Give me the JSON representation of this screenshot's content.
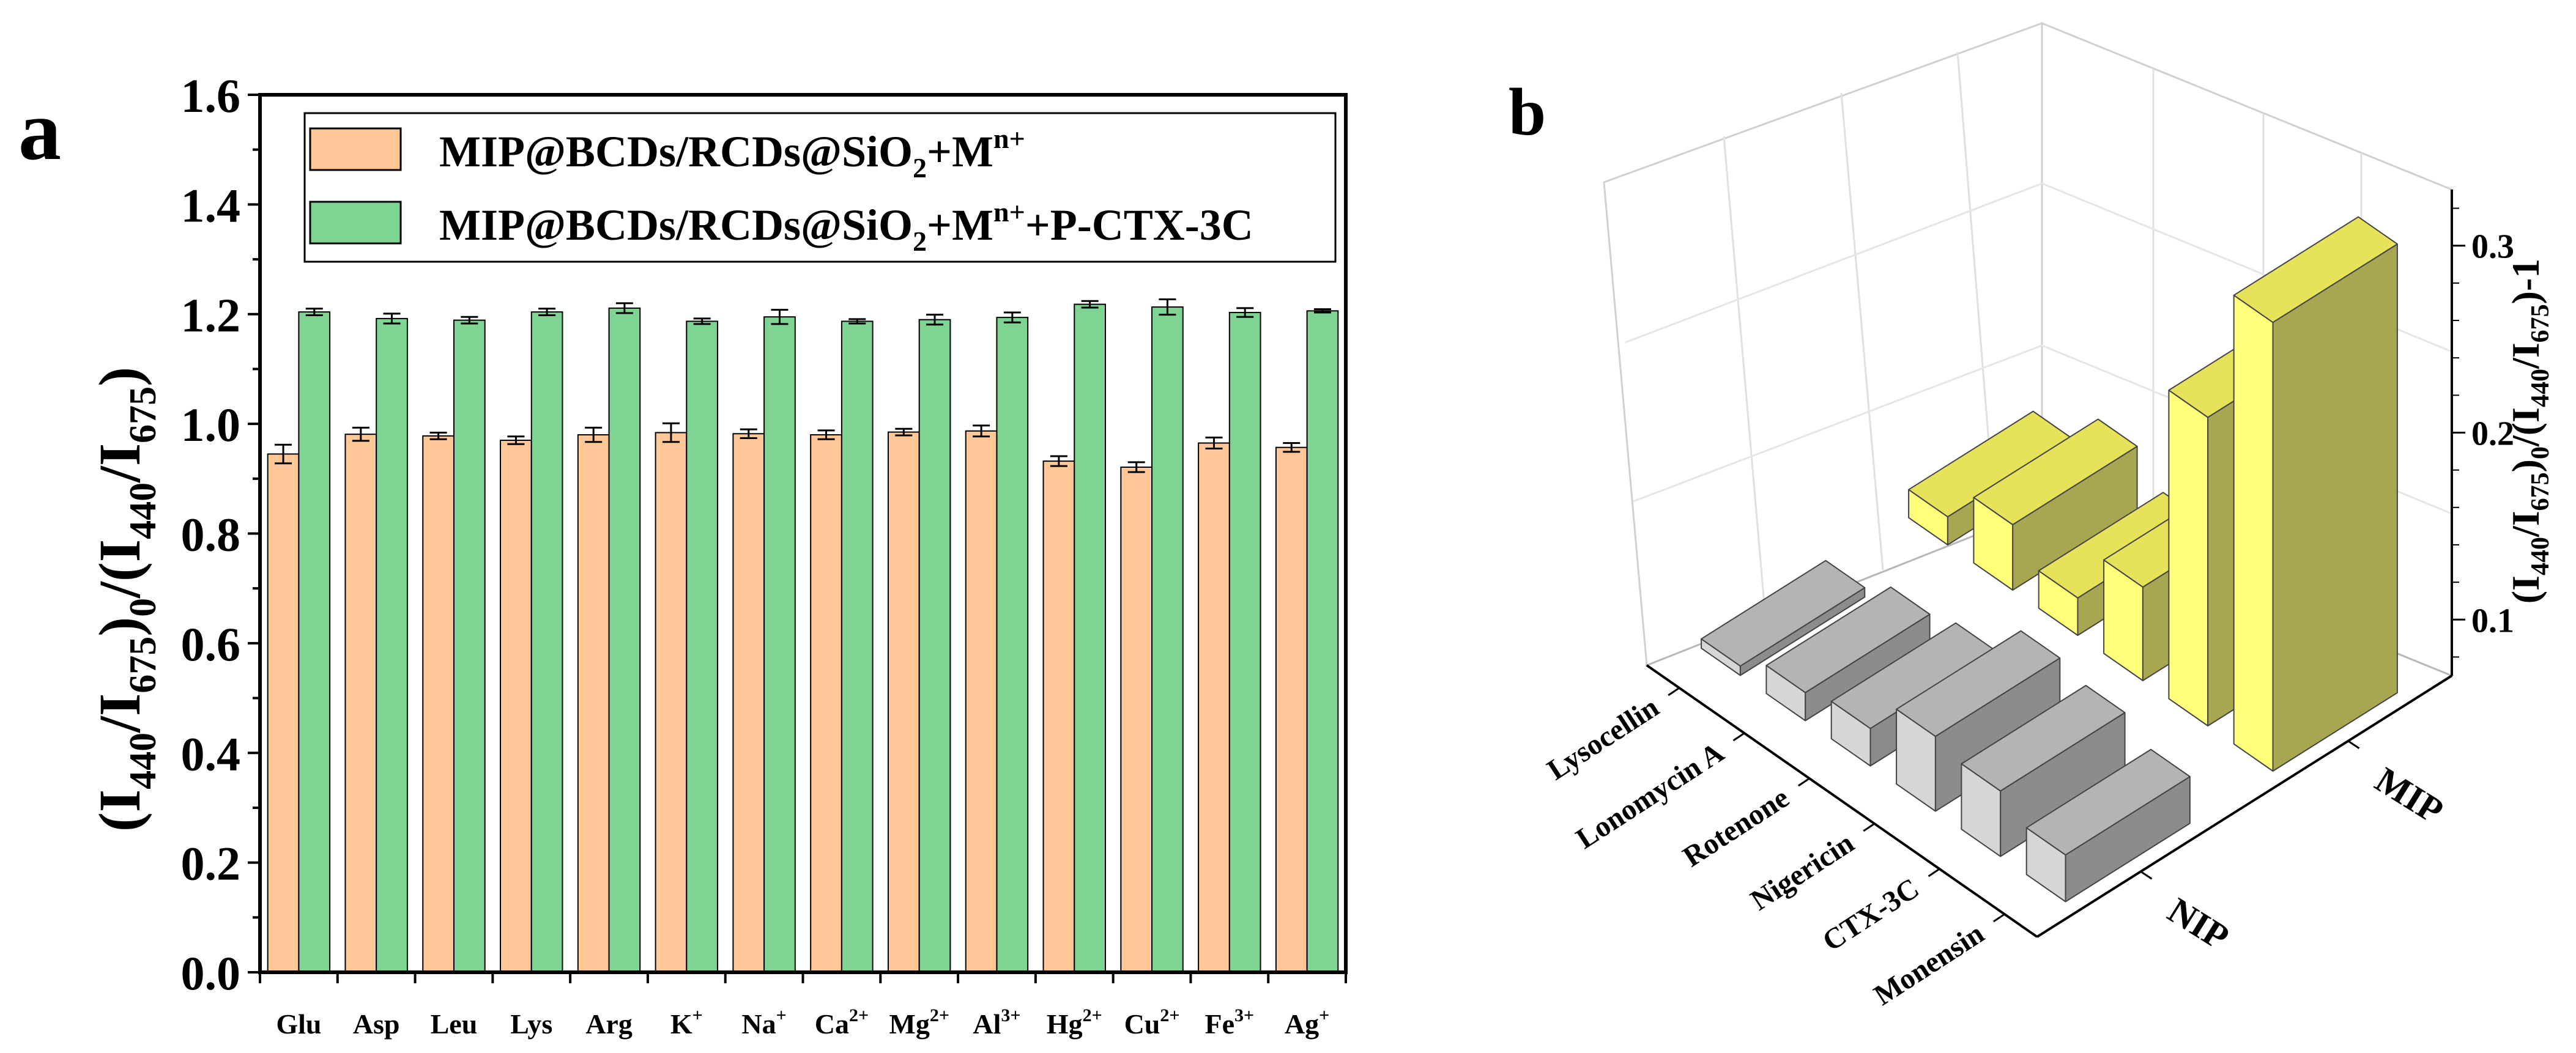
{
  "panel_a": {
    "label": "a",
    "legend": [
      {
        "base": "MIP@BCDs/RCDs@SiO",
        "sub": "2",
        "mid": "+M",
        "sup": "n+",
        "tail": "",
        "color": "#FFC896"
      },
      {
        "base": "MIP@BCDs/RCDs@SiO",
        "sub": "2",
        "mid": "+M",
        "sup": "n+",
        "tail": "+P-CTX-3C",
        "color": "#7FD494"
      }
    ],
    "ylabel": {
      "p1": "(I",
      "s1": "440",
      "p2": "/I",
      "s2": "675",
      "p3": ")",
      "s3": "0",
      "p4": "/(I",
      "s4": "440",
      "p5": "/I",
      "s5": "675",
      "p6": ")"
    },
    "yticks": [
      "0.0",
      "0.2",
      "0.4",
      "0.6",
      "0.8",
      "1.0",
      "1.2",
      "1.4",
      "1.6"
    ],
    "categories": [
      {
        "base": "Glu",
        "sup": ""
      },
      {
        "base": "Asp",
        "sup": ""
      },
      {
        "base": "Leu",
        "sup": ""
      },
      {
        "base": "Lys",
        "sup": ""
      },
      {
        "base": "Arg",
        "sup": ""
      },
      {
        "base": "K",
        "sup": "+"
      },
      {
        "base": "Na",
        "sup": "+"
      },
      {
        "base": "Ca",
        "sup": "2+"
      },
      {
        "base": "Mg",
        "sup": "2+"
      },
      {
        "base": "Al",
        "sup": "3+"
      },
      {
        "base": "Hg",
        "sup": "2+"
      },
      {
        "base": "Cu",
        "sup": "2+"
      },
      {
        "base": "Fe",
        "sup": "3+"
      },
      {
        "base": "Ag",
        "sup": "+"
      }
    ]
  },
  "panel_b": {
    "label": "b",
    "zlabel": {
      "p1": "(I",
      "s1": "440",
      "p2": "/I",
      "s2": "675",
      "p3": ")",
      "s3": "0",
      "p4": "/(I",
      "s4": "440",
      "p5": "/I",
      "s5": "675",
      "p6": ")-1"
    },
    "zticks": [
      "0.1",
      "0.2",
      "0.3"
    ]
  },
  "chart_data": [
    {
      "type": "bar",
      "title": "",
      "xlabel": "",
      "ylabel": "(I440/I675)0/(I440/I675)",
      "ylim": [
        0,
        1.6
      ],
      "grid": false,
      "legend_position": "top",
      "categories": [
        "Glu",
        "Asp",
        "Leu",
        "Lys",
        "Arg",
        "K+",
        "Na+",
        "Ca2+",
        "Mg2+",
        "Al3+",
        "Hg2+",
        "Cu2+",
        "Fe3+",
        "Ag+"
      ],
      "series": [
        {
          "name": "MIP@BCDs/RCDs@SiO2+Mn+",
          "color": "#FFC896",
          "values": [
            0.945,
            0.981,
            0.978,
            0.97,
            0.98,
            0.984,
            0.982,
            0.98,
            0.985,
            0.987,
            0.932,
            0.921,
            0.965,
            0.957
          ],
          "errors": [
            0.017,
            0.012,
            0.006,
            0.007,
            0.013,
            0.017,
            0.008,
            0.008,
            0.006,
            0.01,
            0.009,
            0.009,
            0.01,
            0.008
          ]
        },
        {
          "name": "MIP@BCDs/RCDs@SiO2+Mn++P-CTX-3C",
          "color": "#7FD494",
          "values": [
            1.204,
            1.192,
            1.189,
            1.204,
            1.211,
            1.187,
            1.195,
            1.187,
            1.19,
            1.194,
            1.218,
            1.213,
            1.203,
            1.206
          ],
          "errors": [
            0.006,
            0.009,
            0.006,
            0.006,
            0.009,
            0.005,
            0.013,
            0.004,
            0.009,
            0.009,
            0.006,
            0.014,
            0.008,
            0.003
          ]
        }
      ]
    },
    {
      "type": "bar",
      "title": "",
      "xlabel": "",
      "ylabel": "",
      "zlabel": "(I440/I675)0/(I440/I675)-1",
      "zlim": [
        0.07,
        0.33
      ],
      "grid": true,
      "categories": [
        "Lysocellin",
        "Lonomycin A",
        "Rotenone",
        "Nigericin",
        "CTX-3C",
        "Monensin"
      ],
      "groups": [
        "NIP",
        "MIP"
      ],
      "series": [
        {
          "name": "NIP",
          "color": "#A0A0A0",
          "values": [
            0.075,
            0.085,
            0.09,
            0.11,
            0.105,
            0.095
          ]
        },
        {
          "name": "MIP",
          "color": "#F5F06A",
          "values": [
            0.085,
            0.105,
            0.09,
            0.12,
            0.235,
            0.31
          ]
        }
      ]
    }
  ]
}
